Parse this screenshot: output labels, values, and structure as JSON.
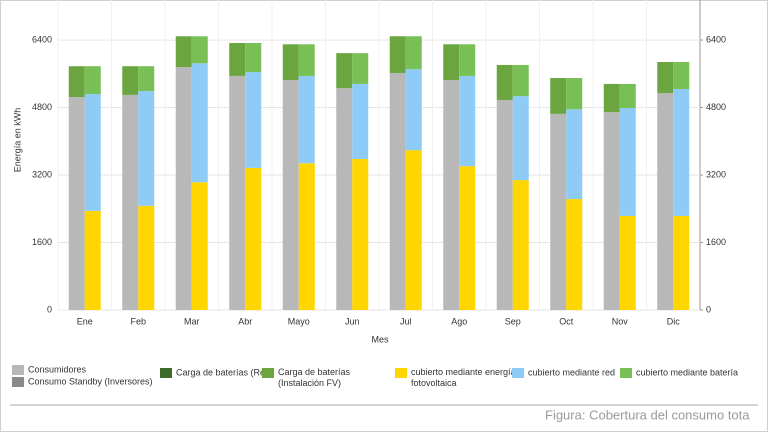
{
  "chart_data": {
    "type": "bar",
    "y_label": "Energía en kWh",
    "x_label": "Mes",
    "categories": [
      "Ene",
      "Feb",
      "Mar",
      "Abr",
      "Mayo",
      "Jun",
      "Jul",
      "Ago",
      "Sep",
      "Oct",
      "Nov",
      "Dic"
    ],
    "series": [
      {
        "name": "Consumidores",
        "color": "#b8b8b8",
        "stack": 0,
        "values": [
          5050,
          5100,
          5760,
          5550,
          5450,
          5260,
          5620,
          5450,
          4980,
          4650,
          4690,
          5140
        ]
      },
      {
        "name": "Consumo Standby (Inversores)",
        "color": "#8a8a8a",
        "stack": 0,
        "values": [
          0,
          0,
          0,
          0,
          0,
          0,
          0,
          0,
          0,
          0,
          0,
          0
        ]
      },
      {
        "name": "Carga de baterías (Red)",
        "color": "#3e6b2c",
        "stack": 0,
        "values": [
          0,
          0,
          0,
          0,
          0,
          0,
          0,
          0,
          0,
          0,
          0,
          0
        ]
      },
      {
        "name": "Carga de baterías (Instalación FV)",
        "color": "#6aa53f",
        "stack": 0,
        "values": [
          730,
          680,
          730,
          780,
          850,
          830,
          870,
          850,
          830,
          850,
          670,
          740
        ]
      },
      {
        "name": "cubierto mediante energía fotovoltaica",
        "color": "#ffd600",
        "stack": 1,
        "values": [
          2350,
          2470,
          3030,
          3370,
          3480,
          3580,
          3790,
          3410,
          3080,
          2630,
          2230,
          2230
        ]
      },
      {
        "name": "cubierto mediante red",
        "color": "#8fcbf7",
        "stack": 1,
        "values": [
          2770,
          2720,
          2820,
          2270,
          2070,
          1780,
          1920,
          2140,
          1990,
          2130,
          2560,
          3010
        ]
      },
      {
        "name": "cubierto mediante batería",
        "color": "#78bf56",
        "stack": 1,
        "values": [
          660,
          590,
          640,
          690,
          750,
          730,
          780,
          750,
          740,
          740,
          570,
          640
        ]
      }
    ],
    "ylim": [
      0,
      7350
    ],
    "yticks": [
      0,
      1600,
      3200,
      4800,
      6400
    ],
    "y2lim": [
      0,
      7350
    ],
    "y2ticks": [
      0,
      1600,
      3200,
      4800,
      6400
    ],
    "grid": true,
    "caption": "Figura: Cobertura del consumo tota"
  }
}
